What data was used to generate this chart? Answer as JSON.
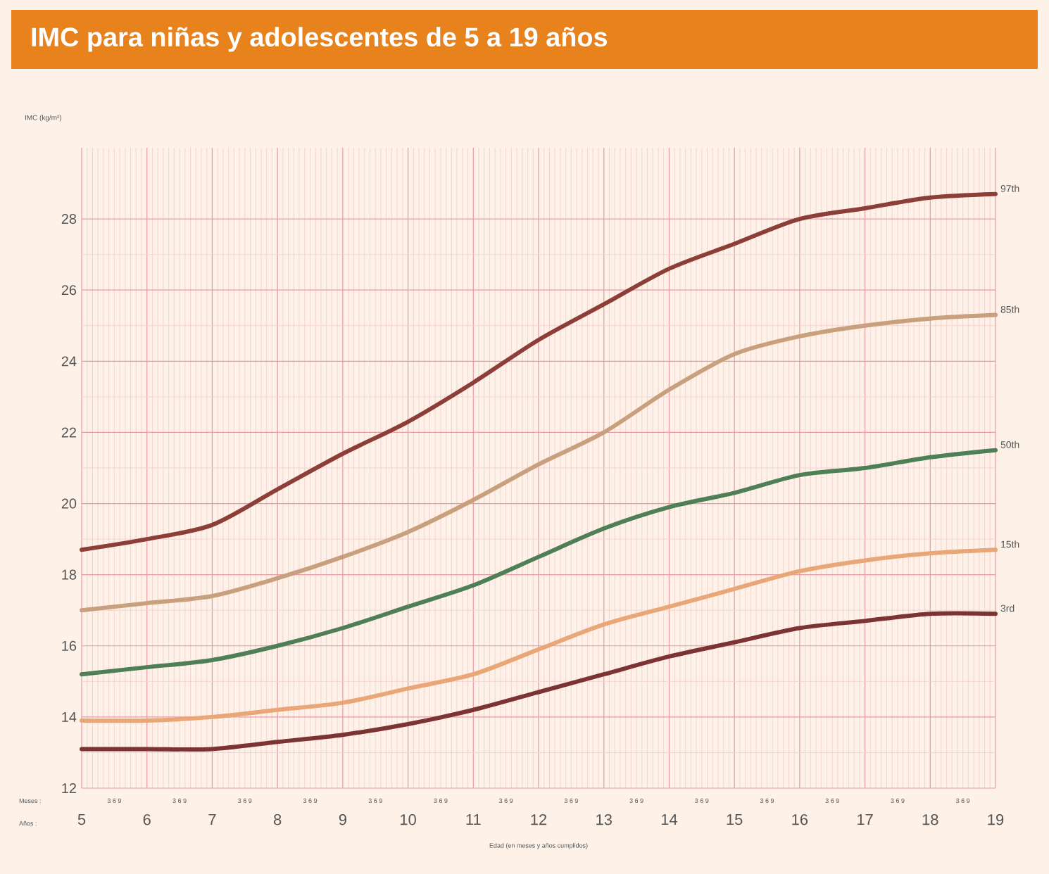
{
  "chart_data": {
    "type": "line",
    "title": "IMC para niñas y adolescentes de 5 a 19 años",
    "xlabel": "Edad (en meses y años cumplidos)",
    "ylabel": "IMC (kg/m²)",
    "annotations": [
      "Meses :",
      "Años :",
      "3 6 9",
      "3 6 9",
      "3 6 9",
      "3 6 9",
      "3 6 9",
      "3 6 9",
      "3 6 9",
      "3 6 9",
      "3 6 9",
      "3 6 9",
      "3 6 9",
      "3 6 9",
      "3 6 9",
      "3 6 9"
    ],
    "x": [
      5,
      6,
      7,
      8,
      9,
      10,
      11,
      12,
      13,
      14,
      15,
      16,
      17,
      18,
      19
    ],
    "series": [
      {
        "name": "97th",
        "color": "#8c3f38",
        "values": [
          18.7,
          19.0,
          19.4,
          20.4,
          21.4,
          22.3,
          23.4,
          24.6,
          25.6,
          26.6,
          27.3,
          28.0,
          28.3,
          28.6,
          28.7
        ]
      },
      {
        "name": "85th",
        "color": "#c9a07e",
        "values": [
          17.0,
          17.2,
          17.4,
          17.9,
          18.5,
          19.2,
          20.1,
          21.1,
          22.0,
          23.2,
          24.2,
          24.7,
          25.0,
          25.2,
          25.3
        ]
      },
      {
        "name": "50th",
        "color": "#4f7f55",
        "values": [
          15.2,
          15.4,
          15.6,
          16.0,
          16.5,
          17.1,
          17.7,
          18.5,
          19.3,
          19.9,
          20.3,
          20.8,
          21.0,
          21.3,
          21.5
        ]
      },
      {
        "name": "15th",
        "color": "#e9a676",
        "values": [
          13.9,
          13.9,
          14.0,
          14.2,
          14.4,
          14.8,
          15.2,
          15.9,
          16.6,
          17.1,
          17.6,
          18.1,
          18.4,
          18.6,
          18.7
        ]
      },
      {
        "name": "3rd",
        "color": "#7c3433",
        "values": [
          13.1,
          13.1,
          13.1,
          13.3,
          13.5,
          13.8,
          14.2,
          14.7,
          15.2,
          15.7,
          16.1,
          16.5,
          16.7,
          16.9,
          16.9
        ]
      }
    ],
    "xlim": [
      5,
      19
    ],
    "ylim": [
      12,
      30
    ],
    "xticks": [
      5,
      6,
      7,
      8,
      9,
      10,
      11,
      12,
      13,
      14,
      15,
      16,
      17,
      18,
      19
    ],
    "yticks": [
      12,
      14,
      16,
      18,
      20,
      22,
      24,
      26,
      28
    ],
    "grid": true
  }
}
